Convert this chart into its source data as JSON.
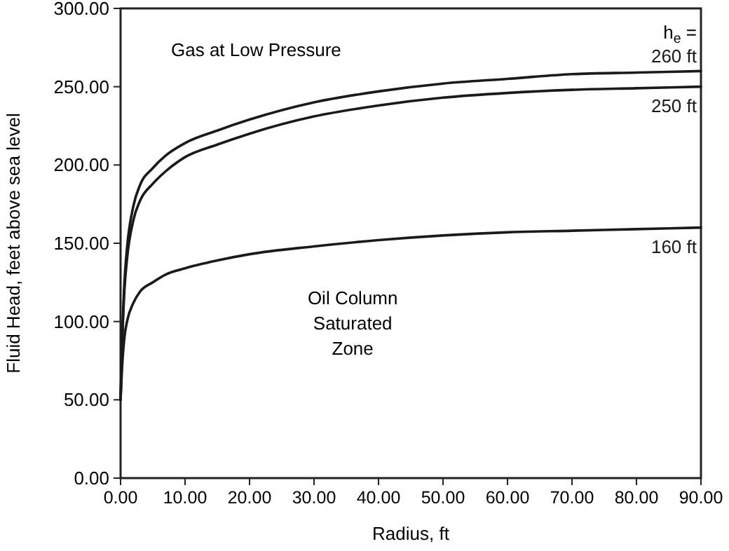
{
  "chart_data": {
    "type": "line",
    "xlabel": "Radius, ft",
    "ylabel": "Fluid Head, feet above sea level",
    "xlim": [
      0,
      90
    ],
    "ylim": [
      0,
      300
    ],
    "xticks": [
      {
        "value": 0,
        "label": "0.00"
      },
      {
        "value": 10,
        "label": "10.00"
      },
      {
        "value": 20,
        "label": "20.00"
      },
      {
        "value": 30,
        "label": "30.00"
      },
      {
        "value": 40,
        "label": "40.00"
      },
      {
        "value": 50,
        "label": "50.00"
      },
      {
        "value": 60,
        "label": "60.00"
      },
      {
        "value": 70,
        "label": "70.00"
      },
      {
        "value": 80,
        "label": "80.00"
      },
      {
        "value": 90,
        "label": "90.00"
      }
    ],
    "yticks": [
      {
        "value": 0,
        "label": "0.00"
      },
      {
        "value": 50,
        "label": "50.00"
      },
      {
        "value": 100,
        "label": "100.00"
      },
      {
        "value": 150,
        "label": "150.00"
      },
      {
        "value": 200,
        "label": "200.00"
      },
      {
        "value": 250,
        "label": "250.00"
      },
      {
        "value": 300,
        "label": "300.00"
      }
    ],
    "grid": false,
    "marker": "none",
    "line_style": "solid",
    "x": [
      0,
      0.3,
      0.6,
      1,
      2,
      3,
      5,
      7,
      10,
      15,
      20,
      30,
      40,
      50,
      60,
      70,
      80,
      90
    ],
    "series": [
      {
        "name": "260 ft",
        "color": "#1a1a1a",
        "values": [
          50,
          95,
          125,
          147,
          174,
          187,
          198,
          206,
          214,
          222,
          229,
          240,
          247,
          252,
          255,
          258,
          259,
          260
        ]
      },
      {
        "name": "250 ft",
        "color": "#1a1a1a",
        "values": [
          50,
          92,
          120,
          140,
          165,
          177,
          188,
          196,
          205,
          213,
          220,
          231,
          238,
          243,
          246,
          248,
          249,
          250
        ]
      },
      {
        "name": "160 ft",
        "color": "#1a1a1a",
        "values": [
          50,
          75,
          90,
          100,
          112,
          119,
          125,
          130,
          134,
          139,
          143,
          148,
          152,
          155,
          157,
          158,
          159,
          160
        ]
      }
    ],
    "annotations": [
      "Gas at Low Pressure",
      "Oil Column Saturated Zone",
      "h$_{e}$ ="
    ]
  }
}
